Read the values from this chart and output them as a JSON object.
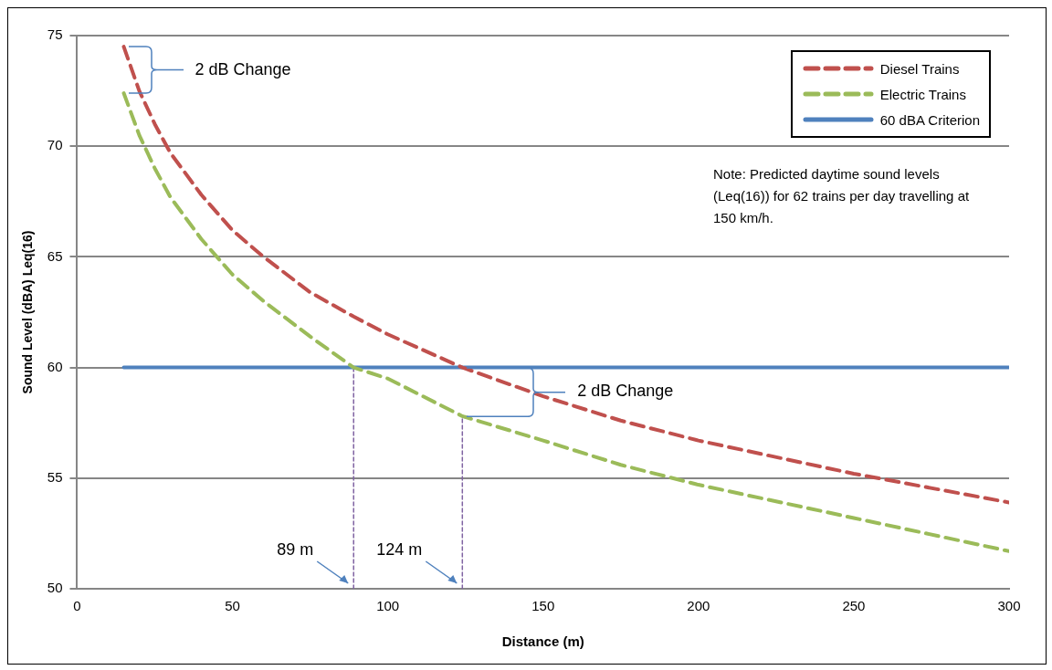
{
  "chart_data": {
    "type": "line",
    "xlabel": "Distance (m)",
    "ylabel": "Sound Level (dBA) Leq(16)",
    "xlim": [
      0,
      300
    ],
    "xticks": [
      0,
      50,
      100,
      150,
      200,
      250,
      300
    ],
    "ylim": [
      50,
      75
    ],
    "yticks": [
      50,
      55,
      60,
      65,
      70,
      75
    ],
    "grid": "y",
    "legend": "top right",
    "marker": "none",
    "series": [
      {
        "name": "Diesel Trains",
        "color": "#c0504d",
        "line_style": "dashed",
        "x": [
          15,
          20,
          25,
          30,
          40,
          50,
          60,
          75,
          89,
          100,
          124,
          150,
          175,
          200,
          250,
          300
        ],
        "values": [
          74.5,
          72.5,
          71.0,
          69.7,
          67.8,
          66.2,
          65.0,
          63.4,
          62.3,
          61.5,
          60.0,
          58.7,
          57.6,
          56.7,
          55.2,
          53.9
        ]
      },
      {
        "name": "Electric Trains",
        "color": "#9bbb59",
        "line_style": "dashed",
        "x": [
          15,
          20,
          25,
          30,
          40,
          50,
          60,
          75,
          89,
          100,
          124,
          150,
          175,
          200,
          250,
          300
        ],
        "values": [
          72.4,
          70.5,
          69.0,
          67.7,
          65.8,
          64.2,
          63.0,
          61.4,
          60.0,
          59.5,
          57.8,
          56.7,
          55.6,
          54.7,
          53.2,
          51.7
        ]
      },
      {
        "name": "60 dBA Criterion",
        "color": "#4f81bd",
        "line_style": "solid",
        "x": [
          15,
          300
        ],
        "values": [
          60,
          60
        ]
      },
      {
        "color": "#8064a2",
        "line_style": "dotted",
        "x": [
          89,
          89
        ],
        "values": [
          50,
          60
        ]
      },
      {
        "color": "#8064a2",
        "line_style": "dotted",
        "x": [
          124,
          124
        ],
        "values": [
          50,
          57.8
        ]
      }
    ],
    "annotations": [
      {
        "text": "2 dB Change",
        "x": 15,
        "y": 74.5
      },
      {
        "text": "2 dB Change",
        "x": 124,
        "y": 60.0
      },
      {
        "text": "89 m",
        "x": 89,
        "y": 50
      },
      {
        "text": "124 m",
        "x": 124,
        "y": 50
      },
      "Note: Predicted daytime sound levels (Leq(16)) for 62 trains per day travelling at 150 km/h."
    ]
  }
}
